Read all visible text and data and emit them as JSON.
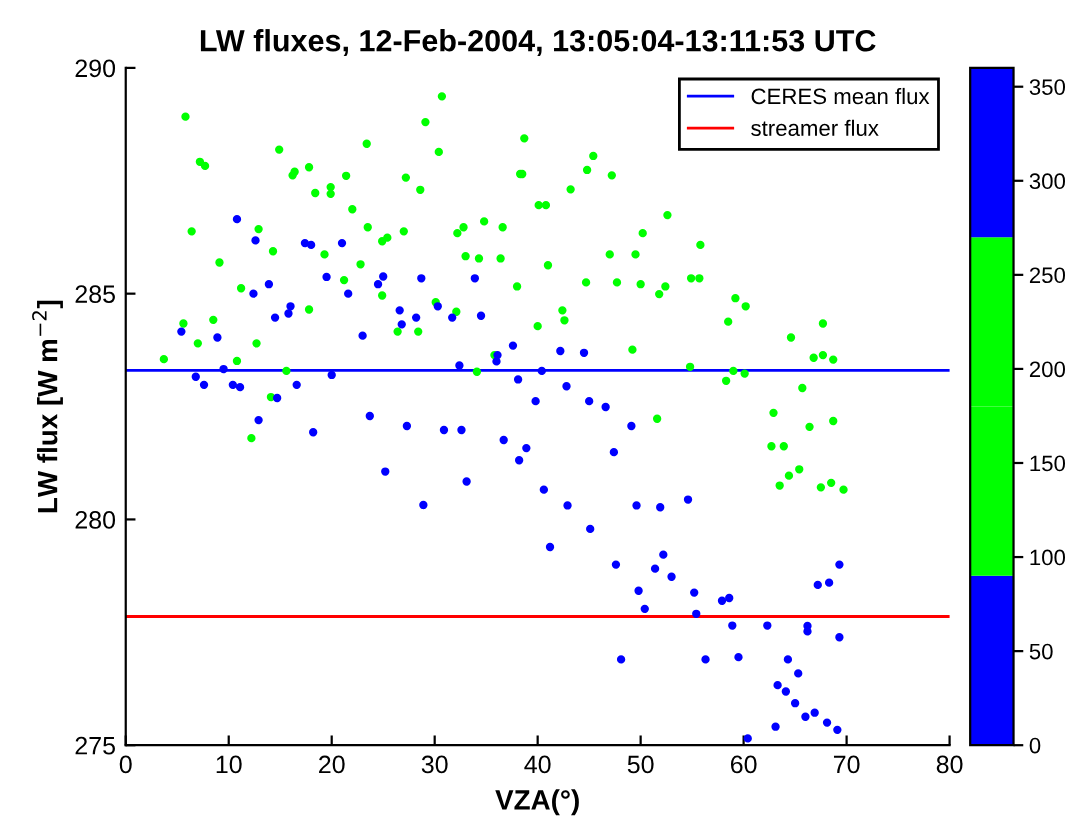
{
  "chart_data": {
    "type": "scatter",
    "title": "LW fluxes, 12-Feb-2004, 13:05:04-13:11:53 UTC",
    "xlabel": "VZA(°)",
    "ylabel": "LW flux [W m$^{−2}$]",
    "xlim": [
      0,
      80
    ],
    "xticks": [
      0,
      10,
      20,
      30,
      40,
      50,
      60,
      70,
      80
    ],
    "ylim": [
      275,
      290
    ],
    "yticks": [
      275,
      280,
      285,
      290
    ],
    "clim": [
      0,
      360
    ],
    "cticks": [
      0,
      50,
      100,
      150,
      200,
      250,
      300,
      350
    ],
    "colors": [
      "#0000ff",
      "#00ff00",
      "#00ff00",
      "#0000ff"
    ],
    "marker": "circle",
    "grid": false,
    "legend": "top right",
    "ref_lines": [
      {
        "axis": "y",
        "value": 283.3,
        "label": "CERES mean flux",
        "color": "#0000ff"
      },
      {
        "axis": "y",
        "value": 277.85,
        "label": "streamer flux",
        "color": "#ff0000"
      }
    ],
    "series": [
      {
        "x": [
          5.8,
          7.2,
          7.7,
          6.4,
          9.1,
          11.2,
          8.5,
          5.6,
          7.0,
          3.7,
          10.8,
          12.7,
          15.6,
          14.1,
          12.9,
          14.3,
          14.9,
          16.2,
          16.4,
          17.8,
          18.4,
          17.8,
          19.3,
          19.9,
          19.9,
          21.4,
          22.0,
          21.2,
          22.8,
          23.4,
          23.5,
          24.9,
          25.4,
          24.9,
          27.0,
          27.2,
          28.6,
          29.1,
          30.7,
          30.4,
          26.4,
          28.4,
          30.1,
          32.1,
          32.2,
          32.8,
          33.0,
          34.8,
          34.3,
          36.6,
          36.4,
          38.0,
          38.3,
          35.8,
          34.1,
          12.2,
          38.7,
          38.5,
          40.1,
          40.8,
          41.0,
          43.2,
          44.8,
          45.4,
          47.2,
          52.6,
          50.2,
          47.0,
          49.5,
          55.8,
          54.9,
          55.7,
          44.7,
          47.7,
          50.0,
          51.8,
          52.4,
          42.4,
          42.6,
          40.0,
          49.2,
          59.2,
          60.2,
          58.5,
          64.6,
          67.7,
          66.8,
          67.7,
          68.7,
          54.8,
          59.0,
          60.1,
          58.3,
          65.7,
          51.6,
          62.9,
          66.4,
          68.7,
          62.7,
          63.9,
          65.4,
          64.4,
          63.5,
          67.5,
          68.5,
          69.7,
          10.8,
          12.6,
          17.4,
          18.0,
          21.0,
          19.5,
          12.4,
          13.9,
          16.0,
          15.8,
          14.5,
          21.6,
          24.5,
          25.0,
          28.7,
          26.6,
          26.8,
          28.2,
          30.3,
          33.9,
          34.5,
          31.7,
          23.0,
          5.4,
          8.9,
          9.5,
          6.8,
          7.6,
          10.4,
          11.1,
          16.6,
          20.0,
          14.7,
          32.4,
          36.1,
          36.0,
          37.6,
          38.1,
          12.9,
          18.2,
          23.7,
          25.2,
          27.3,
          28.9,
          30.9,
          32.6,
          33.1,
          36.7,
          38.2,
          42.2,
          44.5,
          40.4,
          42.8,
          39.8,
          45.0,
          46.6,
          49.1,
          38.9,
          47.4,
          40.6,
          42.9,
          49.6,
          51.9,
          54.6,
          45.1,
          41.2,
          47.6,
          51.4,
          52.2,
          53.0,
          49.8,
          55.2,
          50.4,
          57.9,
          58.6,
          55.4,
          58.9,
          62.3,
          66.2,
          66.2,
          69.3,
          67.2,
          68.3,
          69.3,
          48.1,
          56.3,
          59.5,
          64.3,
          65.3,
          63.3,
          64.1,
          65.0,
          66.9,
          66.0,
          68.1,
          69.1,
          63.1,
          60.4
        ],
        "values": [
          288.92,
          287.92,
          287.83,
          286.38,
          285.69,
          285.12,
          284.42,
          284.34,
          283.9,
          283.55,
          283.51,
          283.9,
          283.29,
          282.71,
          286.43,
          285.94,
          288.19,
          287.62,
          287.7,
          287.8,
          287.23,
          284.65,
          285.87,
          287.36,
          287.21,
          287.61,
          286.87,
          285.3,
          285.65,
          288.32,
          286.47,
          286.16,
          286.24,
          284.96,
          286.38,
          287.57,
          287.3,
          288.8,
          289.37,
          288.14,
          284.16,
          284.16,
          284.81,
          284.6,
          286.34,
          286.47,
          285.83,
          286.6,
          285.78,
          286.47,
          285.78,
          285.16,
          287.65,
          283.64,
          283.27,
          281.8,
          288.44,
          287.65,
          286.96,
          286.96,
          285.63,
          287.31,
          287.74,
          288.05,
          287.62,
          286.74,
          286.34,
          285.87,
          285.87,
          286.08,
          285.34,
          285.34,
          285.25,
          285.25,
          285.21,
          284.99,
          285.16,
          284.63,
          284.41,
          284.28,
          283.76,
          284.9,
          284.72,
          284.38,
          284.03,
          284.34,
          283.58,
          283.64,
          283.54,
          283.38,
          283.29,
          283.23,
          283.07,
          282.91,
          282.23,
          282.36,
          282.05,
          282.18,
          281.62,
          281.62,
          281.11,
          280.97,
          280.75,
          280.71,
          280.81,
          280.66,
          286.65,
          286.18,
          286.12,
          286.08,
          286.12,
          285.37,
          285.0,
          285.21,
          284.72,
          284.56,
          284.47,
          285.0,
          285.21,
          285.38,
          285.34,
          284.63,
          284.32,
          284.47,
          284.72,
          285.34,
          284.51,
          284.47,
          284.07,
          284.16,
          284.03,
          283.33,
          283.16,
          282.98,
          282.98,
          282.93,
          282.98,
          283.2,
          282.69,
          283.41,
          283.64,
          283.5,
          283.85,
          283.1,
          282.2,
          281.93,
          282.29,
          281.06,
          282.07,
          280.32,
          281.98,
          281.98,
          280.84,
          281.76,
          281.31,
          283.73,
          283.69,
          283.29,
          282.95,
          282.62,
          282.62,
          282.49,
          282.07,
          281.58,
          281.49,
          280.66,
          280.31,
          280.31,
          280.27,
          280.44,
          279.79,
          279.39,
          279.0,
          278.91,
          279.22,
          278.73,
          278.42,
          278.38,
          278.02,
          278.2,
          278.26,
          277.91,
          277.65,
          277.65,
          277.64,
          277.52,
          277.39,
          278.55,
          278.6,
          279.0,
          276.9,
          276.9,
          276.95,
          276.9,
          276.59,
          276.33,
          276.19,
          275.93,
          275.72,
          275.63,
          275.5,
          275.34,
          275.41,
          275.15
        ],
        "colors": [
          "#00ff00",
          "#00ff00",
          "#00ff00",
          "#00ff00",
          "#00ff00",
          "#00ff00",
          "#00ff00",
          "#00ff00",
          "#00ff00",
          "#00ff00",
          "#00ff00",
          "#00ff00",
          "#00ff00",
          "#00ff00",
          "#00ff00",
          "#00ff00",
          "#00ff00",
          "#00ff00",
          "#00ff00",
          "#00ff00",
          "#00ff00",
          "#00ff00",
          "#00ff00",
          "#00ff00",
          "#00ff00",
          "#00ff00",
          "#00ff00",
          "#00ff00",
          "#00ff00",
          "#00ff00",
          "#00ff00",
          "#00ff00",
          "#00ff00",
          "#00ff00",
          "#00ff00",
          "#00ff00",
          "#00ff00",
          "#00ff00",
          "#00ff00",
          "#00ff00",
          "#00ff00",
          "#00ff00",
          "#00ff00",
          "#00ff00",
          "#00ff00",
          "#00ff00",
          "#00ff00",
          "#00ff00",
          "#00ff00",
          "#00ff00",
          "#00ff00",
          "#00ff00",
          "#00ff00",
          "#00ff00",
          "#00ff00",
          "#00ff00",
          "#00ff00",
          "#00ff00",
          "#00ff00",
          "#00ff00",
          "#00ff00",
          "#00ff00",
          "#00ff00",
          "#00ff00",
          "#00ff00",
          "#00ff00",
          "#00ff00",
          "#00ff00",
          "#00ff00",
          "#00ff00",
          "#00ff00",
          "#00ff00",
          "#00ff00",
          "#00ff00",
          "#00ff00",
          "#00ff00",
          "#00ff00",
          "#00ff00",
          "#00ff00",
          "#00ff00",
          "#00ff00",
          "#00ff00",
          "#00ff00",
          "#00ff00",
          "#00ff00",
          "#00ff00",
          "#00ff00",
          "#00ff00",
          "#00ff00",
          "#00ff00",
          "#00ff00",
          "#00ff00",
          "#00ff00",
          "#00ff00",
          "#00ff00",
          "#00ff00",
          "#00ff00",
          "#00ff00",
          "#00ff00",
          "#00ff00",
          "#00ff00",
          "#00ff00",
          "#00ff00",
          "#00ff00",
          "#00ff00",
          "#00ff00",
          "#0000ff",
          "#0000ff",
          "#0000ff",
          "#0000ff",
          "#0000ff",
          "#0000ff",
          "#0000ff",
          "#0000ff",
          "#0000ff",
          "#0000ff",
          "#0000ff",
          "#0000ff",
          "#0000ff",
          "#0000ff",
          "#0000ff",
          "#0000ff",
          "#0000ff",
          "#0000ff",
          "#0000ff",
          "#0000ff",
          "#0000ff",
          "#0000ff",
          "#0000ff",
          "#0000ff",
          "#0000ff",
          "#0000ff",
          "#0000ff",
          "#0000ff",
          "#0000ff",
          "#0000ff",
          "#0000ff",
          "#0000ff",
          "#0000ff",
          "#0000ff",
          "#0000ff",
          "#0000ff",
          "#0000ff",
          "#0000ff",
          "#0000ff",
          "#0000ff",
          "#0000ff",
          "#0000ff",
          "#0000ff",
          "#0000ff",
          "#0000ff",
          "#0000ff",
          "#0000ff",
          "#0000ff",
          "#0000ff",
          "#0000ff",
          "#0000ff",
          "#0000ff",
          "#0000ff",
          "#0000ff",
          "#0000ff",
          "#0000ff",
          "#0000ff",
          "#0000ff",
          "#0000ff",
          "#0000ff",
          "#0000ff",
          "#0000ff",
          "#0000ff",
          "#0000ff",
          "#0000ff",
          "#0000ff",
          "#0000ff",
          "#0000ff",
          "#0000ff",
          "#0000ff",
          "#0000ff",
          "#0000ff",
          "#0000ff",
          "#0000ff",
          "#0000ff",
          "#0000ff",
          "#0000ff",
          "#0000ff",
          "#0000ff",
          "#0000ff",
          "#0000ff",
          "#0000ff",
          "#0000ff",
          "#0000ff",
          "#0000ff",
          "#0000ff",
          "#0000ff",
          "#0000ff",
          "#0000ff",
          "#0000ff",
          "#0000ff",
          "#0000ff",
          "#0000ff",
          "#0000ff",
          "#0000ff",
          "#0000ff",
          "#0000ff",
          "#0000ff"
        ]
      }
    ]
  }
}
